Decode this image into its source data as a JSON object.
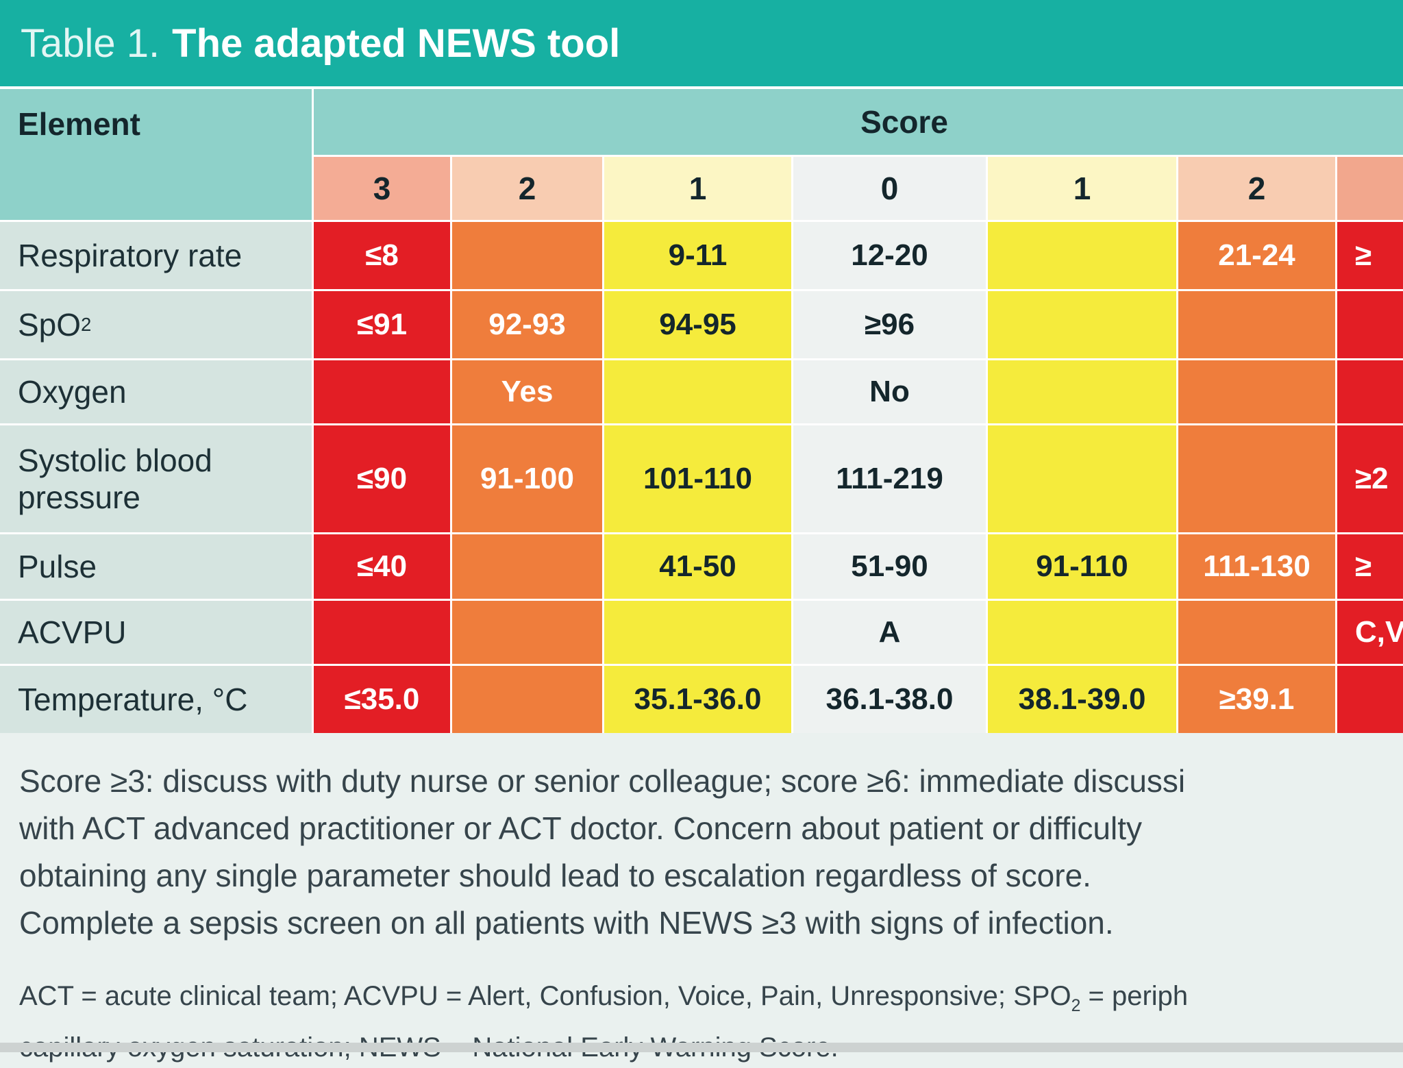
{
  "title": {
    "prefix": "Table 1.",
    "main": "The adapted NEWS tool"
  },
  "table": {
    "element_header": "Element",
    "score_header": "Score",
    "columns": [
      {
        "label": "3",
        "severity": 3
      },
      {
        "label": "2",
        "severity": 2
      },
      {
        "label": "1",
        "severity": 1
      },
      {
        "label": "0",
        "severity": 0
      },
      {
        "label": "1",
        "severity": 1
      },
      {
        "label": "2",
        "severity": 2
      },
      {
        "label": "",
        "severity": 3
      }
    ],
    "rows": [
      {
        "label": "Respiratory rate",
        "cells": [
          "≤8",
          "",
          "9-11",
          "12-20",
          "",
          "21-24",
          "≥"
        ]
      },
      {
        "label": "SpO",
        "label_sub": "2",
        "cells": [
          "≤91",
          "92-93",
          "94-95",
          "≥96",
          "",
          "",
          ""
        ]
      },
      {
        "label": "Oxygen",
        "cells": [
          "",
          "Yes",
          "",
          "No",
          "",
          "",
          ""
        ]
      },
      {
        "label": "Systolic blood pressure",
        "cells": [
          "≤90",
          "91-100",
          "101-110",
          "111-219",
          "",
          "",
          "≥2"
        ]
      },
      {
        "label": "Pulse",
        "cells": [
          "≤40",
          "",
          "41-50",
          "51-90",
          "91-110",
          "111-130",
          "≥"
        ]
      },
      {
        "label": "ACVPU",
        "cells": [
          "",
          "",
          "",
          "A",
          "",
          "",
          "C,V"
        ]
      },
      {
        "label": "Temperature, °C",
        "cells": [
          "≤35.0",
          "",
          "35.1-36.0",
          "36.1-38.0",
          "38.1-39.0",
          "≥39.1",
          ""
        ]
      }
    ]
  },
  "notes": {
    "lines": [
      "Score ≥3: discuss with duty nurse or senior colleague; score ≥6: immediate discussi",
      "with ACT advanced practitioner or ACT doctor. Concern about patient or difficulty",
      "obtaining any single parameter should lead to escalation regardless of score.",
      "Complete a sepsis screen on all patients with NEWS ≥3 with signs of infection."
    ]
  },
  "abbreviations": {
    "line1_pre": "ACT = acute clinical team; ACVPU = Alert, Confusion, Voice, Pain, Unresponsive; SPO",
    "line1_sub": "2",
    "line1_post": " = periph",
    "line2": "capillary oxygen saturation; NEWS = National Early Warning Score."
  },
  "colors": {
    "title_teal": "#17B0A2",
    "header_teal": "#8ED1C9",
    "label_bg": "#D5E4E0",
    "page_bg": "#EAF1EF",
    "sev3": "#E31E25",
    "sev2": "#EF7D3C",
    "sev1": "#F5EB3C",
    "sev0": "#EEF2F1",
    "tint3": "#F4AC95",
    "tint2": "#F8CCB1",
    "tint1": "#FCF6C4",
    "tint0": "#EFF2F2",
    "tint3_right": "#F2A78D",
    "dark_text": "#14262C",
    "light_text": "#FFFFFF"
  }
}
